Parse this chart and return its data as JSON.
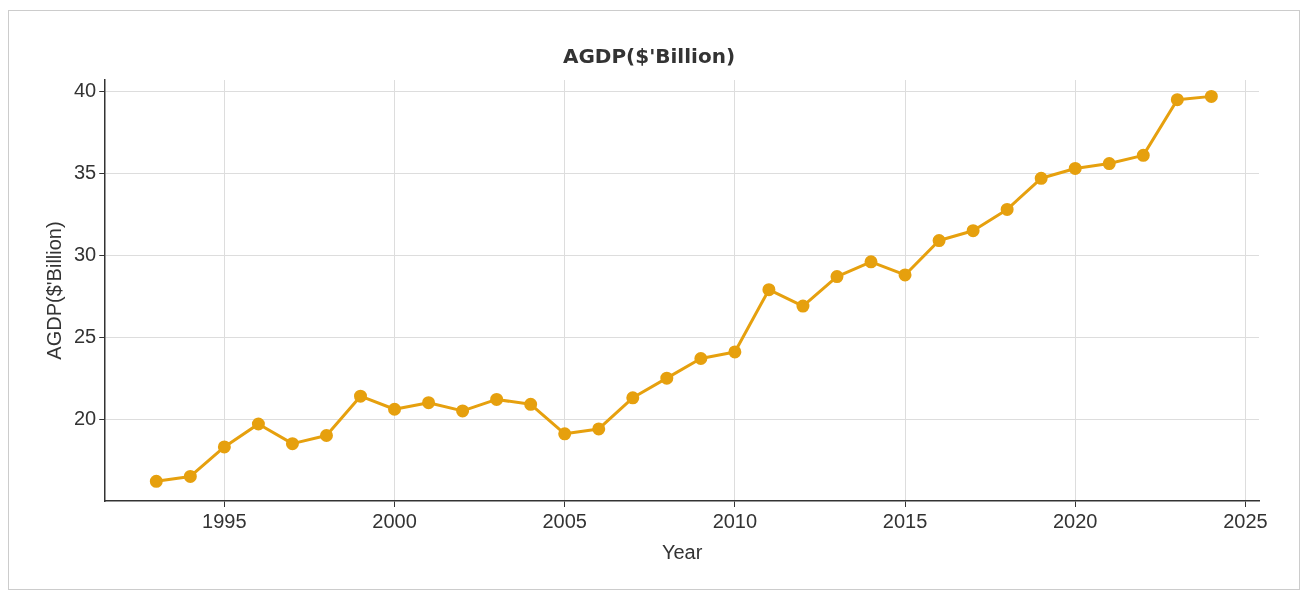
{
  "chart_data": {
    "type": "line",
    "title": "AGDP($'Billion)",
    "xlabel": "Year",
    "ylabel": "AGDP($'Billion)",
    "x": [
      1993,
      1994,
      1995,
      1996,
      1997,
      1998,
      1999,
      2000,
      2001,
      2002,
      2003,
      2004,
      2005,
      2006,
      2007,
      2008,
      2009,
      2010,
      2011,
      2012,
      2013,
      2014,
      2015,
      2016,
      2017,
      2018,
      2019,
      2020,
      2021,
      2022,
      2023,
      2024
    ],
    "series": [
      {
        "color": "#e6a00e",
        "values": [
          16.2,
          16.5,
          18.3,
          19.7,
          18.5,
          19.0,
          21.4,
          20.6,
          21.0,
          20.5,
          21.2,
          20.9,
          19.1,
          19.4,
          21.3,
          22.5,
          23.7,
          24.1,
          27.9,
          26.9,
          28.7,
          29.6,
          28.8,
          30.9,
          31.5,
          32.8,
          34.7,
          35.3,
          35.6,
          36.1,
          39.5,
          39.7
        ]
      }
    ],
    "xlim": [
      1991.5,
      2025.4
    ],
    "xticks": [
      1995,
      2000,
      2005,
      2010,
      2015,
      2020,
      2025
    ],
    "ylim": [
      15,
      40.7
    ],
    "yticks": [
      20,
      25,
      30,
      35,
      40
    ],
    "grid": true,
    "legend": false,
    "marker": "circle",
    "line_style": "solid"
  }
}
